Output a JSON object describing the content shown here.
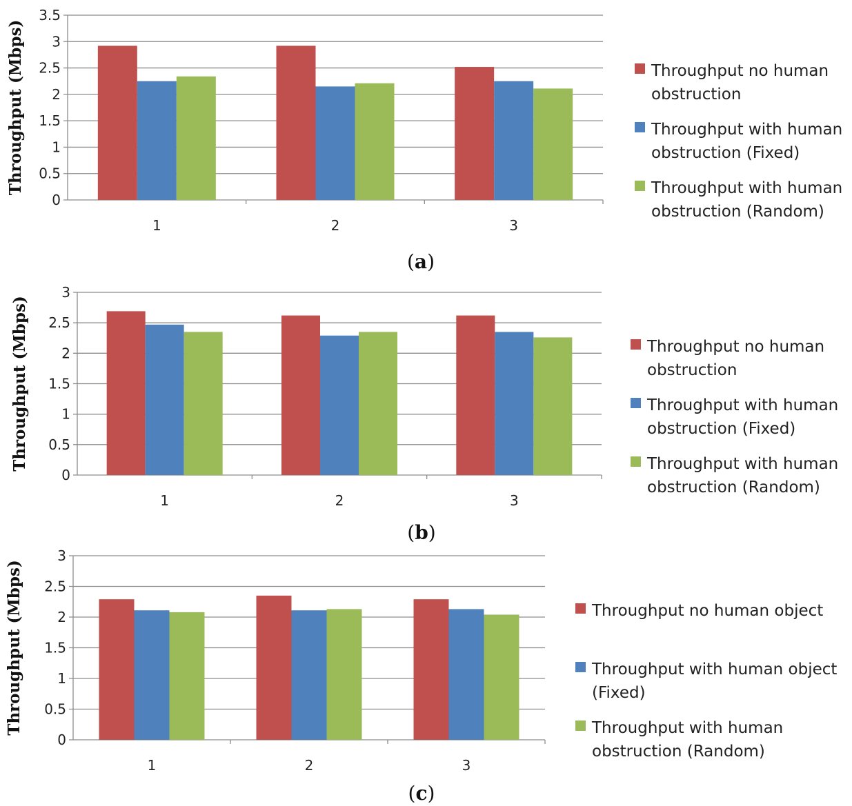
{
  "colors": {
    "series_1": "#c0504d",
    "series_2": "#4f81bd",
    "series_3": "#9bbb59",
    "gridline": "#8c8c8c",
    "axis": "#8c8c8c"
  },
  "chart_data": [
    {
      "type": "bar",
      "caption": "(a)",
      "caption_letter": "a",
      "ylabel": "Throughput (Mbps)",
      "xlabel": "",
      "categories": [
        "1",
        "2",
        "3"
      ],
      "ylim": [
        0,
        3.5
      ],
      "yticks": [
        "0",
        "0.5",
        "1",
        "1.5",
        "2",
        "2.5",
        "3",
        "3.5"
      ],
      "grid": true,
      "legend_position": "right",
      "series": [
        {
          "name": "Throughput no human obstruction",
          "legend_lines": [
            "Throughput no human",
            "obstruction"
          ],
          "values": [
            2.92,
            2.92,
            2.52
          ]
        },
        {
          "name": "Throughput with human obstruction (Fixed)",
          "legend_lines": [
            "Throughput with human",
            "obstruction (Fixed)"
          ],
          "values": [
            2.25,
            2.15,
            2.25
          ]
        },
        {
          "name": "Throughput with human obstruction (Random)",
          "legend_lines": [
            "Throughput with human",
            "obstruction (Random)"
          ],
          "values": [
            2.34,
            2.21,
            2.11
          ]
        }
      ]
    },
    {
      "type": "bar",
      "caption": "(b)",
      "caption_letter": "b",
      "ylabel": "Throughput (Mbps)",
      "xlabel": "",
      "categories": [
        "1",
        "2",
        "3"
      ],
      "ylim": [
        0,
        3
      ],
      "yticks": [
        "0",
        "0.5",
        "1",
        "1.5",
        "2",
        "2.5",
        "3"
      ],
      "grid": true,
      "legend_position": "right",
      "series": [
        {
          "name": "Throughput no human obstruction",
          "legend_lines": [
            "Throughput no human",
            "obstruction"
          ],
          "values": [
            2.69,
            2.62,
            2.62
          ]
        },
        {
          "name": "Throughput with human obstruction (Fixed)",
          "legend_lines": [
            "Throughput with human",
            "obstruction (Fixed)"
          ],
          "values": [
            2.47,
            2.29,
            2.35
          ]
        },
        {
          "name": "Throughput with human obstruction (Random)",
          "legend_lines": [
            "Throughput with human",
            "obstruction (Random)"
          ],
          "values": [
            2.35,
            2.35,
            2.26
          ]
        }
      ]
    },
    {
      "type": "bar",
      "caption": "(c)",
      "caption_letter": "c",
      "ylabel": "Throughput (Mbps)",
      "xlabel": "",
      "categories": [
        "1",
        "2",
        "3"
      ],
      "ylim": [
        0,
        3
      ],
      "yticks": [
        "0",
        "0.5",
        "1",
        "1.5",
        "2",
        "2.5",
        "3"
      ],
      "grid": true,
      "legend_position": "right",
      "series": [
        {
          "name": "Throughput no human object",
          "legend_lines": [
            "Throughput no human object"
          ],
          "values": [
            2.29,
            2.35,
            2.29
          ]
        },
        {
          "name": "Throughput with human object (Fixed)",
          "legend_lines": [
            "Throughput with human object",
            "(Fixed)"
          ],
          "values": [
            2.11,
            2.11,
            2.13
          ]
        },
        {
          "name": "Throughput with human obstruction (Random)",
          "legend_lines": [
            "Throughput with human",
            "obstruction (Random)"
          ],
          "values": [
            2.08,
            2.13,
            2.04
          ]
        }
      ]
    }
  ]
}
